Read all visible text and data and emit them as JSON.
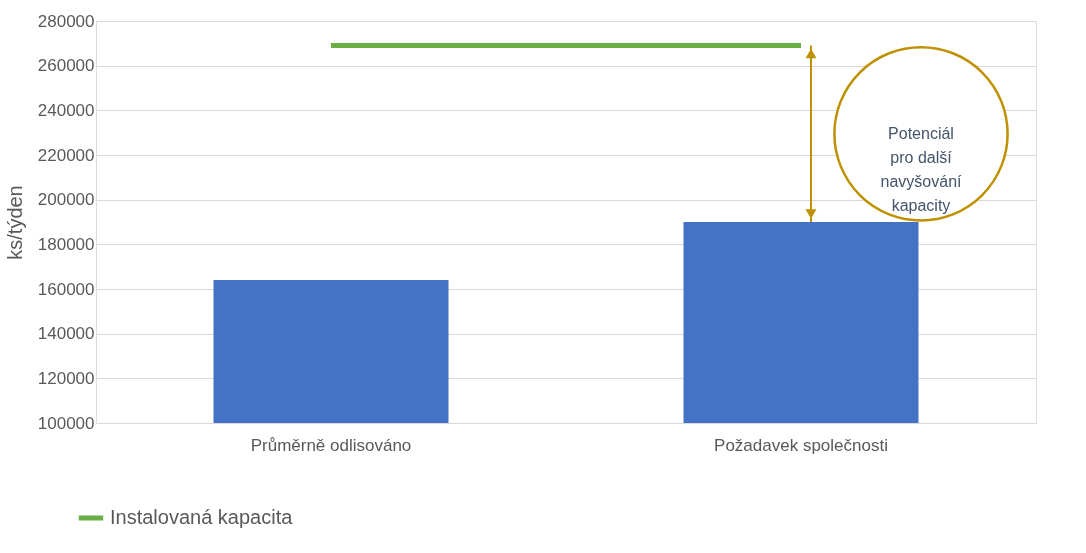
{
  "chart_data": {
    "type": "bar",
    "ylabel": "ks/týden",
    "categories": [
      "Průměrně odlisováno",
      "Požadavek společnosti"
    ],
    "series": [
      {
        "color": "#4472c4",
        "values": [
          164000,
          190000
        ]
      },
      {
        "type": "line",
        "name": "Instalovaná kapacita",
        "color": "#6aaf46",
        "values": [
          269000,
          269000
        ]
      }
    ],
    "ylim": [
      100000,
      280000
    ],
    "yticks": [
      100000,
      120000,
      140000,
      160000,
      180000,
      200000,
      220000,
      240000,
      260000,
      280000
    ],
    "grid": "y",
    "legend": "bottom left",
    "annotations": [
      "Potenciál pro další navyšování kapacity"
    ]
  }
}
